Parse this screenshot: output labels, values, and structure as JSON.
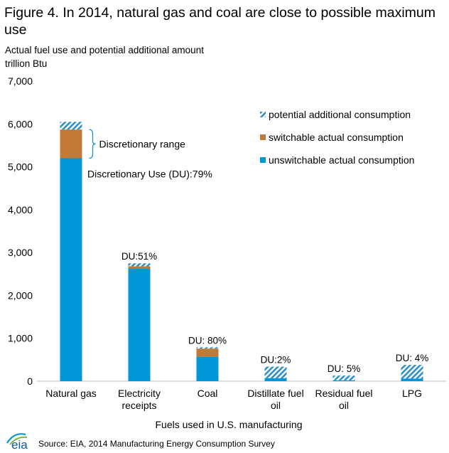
{
  "title": "Figure 4. In 2014, natural gas and coal are close to possible maximum use",
  "subtitle_line1": "Actual fuel use and potential additional amount",
  "subtitle_line2": "trillion Btu",
  "source": "Source: EIA, 2014 Manufacturing Energy Consumption Survey",
  "logo_text": "eia",
  "colors": {
    "unswitchable": "#0096d7",
    "switchable": "#c07a35",
    "potential": "#2f8fc6"
  },
  "chart_data": {
    "type": "bar",
    "stacked": true,
    "categories": [
      "Natural gas",
      "Electricity receipts",
      "Coal",
      "Distillate fuel oil",
      "Residual fuel oil",
      "LPG"
    ],
    "category_lines": [
      [
        "Natural gas"
      ],
      [
        "Electricity",
        "receipts"
      ],
      [
        "Coal"
      ],
      [
        "Distillate fuel",
        "oil"
      ],
      [
        "Residual fuel",
        "oil"
      ],
      [
        "LPG"
      ]
    ],
    "series": [
      {
        "name": "unswitchable actual consumption",
        "key": "unswitchable",
        "values": [
          5200,
          2620,
          570,
          70,
          20,
          60
        ]
      },
      {
        "name": "switchable actual consumption",
        "key": "switchable",
        "values": [
          670,
          60,
          190,
          0,
          0,
          0
        ]
      },
      {
        "name": "potential additional consumption",
        "key": "potential",
        "values": [
          180,
          70,
          30,
          270,
          110,
          320
        ]
      }
    ],
    "legend_order": [
      "potential additional consumption",
      "switchable actual consumption",
      "unswitchable actual consumption"
    ],
    "data_labels": [
      "",
      "DU:51%",
      "DU: 80%",
      "DU:2%",
      "DU: 5%",
      "DU: 4%"
    ],
    "annotations": {
      "discretionary_range": "Discretionary range",
      "discretionary_use": "Discretionary Use (DU):79%"
    },
    "ylim": [
      0,
      7000
    ],
    "yticks": [
      0,
      1000,
      2000,
      3000,
      4000,
      5000,
      6000,
      7000
    ],
    "ytick_labels": [
      "0",
      "1,000",
      "2,000",
      "3,000",
      "4,000",
      "5,000",
      "6,000",
      "7,000"
    ],
    "xlabel": "Fuels used in U.S. manufacturing",
    "ylabel": "trillion Btu",
    "grid": false,
    "legend_position": "top-right"
  }
}
